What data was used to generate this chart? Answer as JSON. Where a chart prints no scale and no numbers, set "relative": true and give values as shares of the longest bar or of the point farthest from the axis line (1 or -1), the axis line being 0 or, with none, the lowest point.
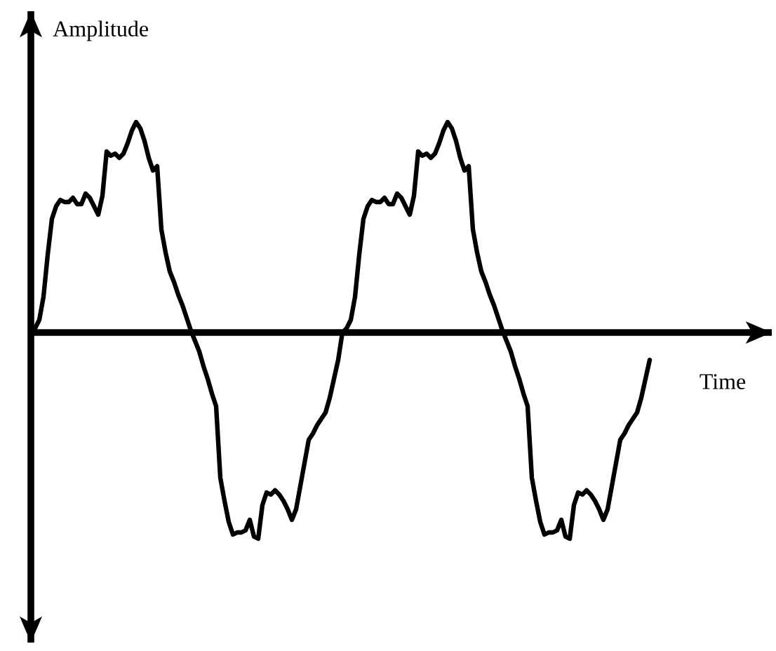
{
  "chart_data": {
    "type": "line",
    "xlabel": "Time",
    "ylabel": "Amplitude",
    "relative": true,
    "tick_labels": false,
    "line_style": "solid",
    "categories": [
      null,
      null,
      null,
      null,
      null,
      null,
      null,
      null,
      null,
      null,
      null,
      null,
      null,
      null,
      null,
      null,
      null,
      null,
      null,
      null,
      null,
      null,
      null,
      null,
      null,
      null,
      null,
      null,
      null,
      null,
      null,
      null,
      null,
      null,
      null,
      null,
      null,
      null,
      null,
      null,
      null,
      null,
      null,
      null,
      null,
      null,
      null,
      null,
      null,
      null,
      null,
      null,
      null,
      null,
      null,
      null,
      null,
      null,
      null,
      null,
      null,
      null,
      null,
      null,
      null,
      null,
      null,
      null,
      null,
      null,
      null,
      null,
      null,
      null,
      null,
      null,
      null,
      null,
      null,
      null,
      null,
      null,
      null,
      null,
      null,
      null,
      null,
      null,
      null,
      null,
      null,
      null,
      null,
      null,
      null,
      null,
      null,
      null,
      null,
      null,
      null,
      null,
      null,
      null,
      null,
      null,
      null,
      null,
      null,
      null,
      null,
      null,
      null,
      null,
      null,
      null,
      null,
      null,
      null,
      null,
      null,
      null,
      null,
      null,
      null,
      null,
      null,
      null,
      null,
      null,
      null,
      null,
      null,
      null,
      null,
      null,
      null,
      null,
      null,
      null,
      null,
      null,
      null,
      null,
      null,
      null,
      null,
      null
    ],
    "series": [
      {
        "color": "#000000",
        "values": [
          0,
          0.02,
          0.06,
          0.17,
          0.37,
          0.54,
          0.6,
          0.63,
          0.62,
          0.62,
          0.64,
          0.61,
          0.61,
          0.66,
          0.64,
          0.6,
          0.56,
          0.65,
          0.86,
          0.84,
          0.85,
          0.83,
          0.85,
          0.9,
          0.96,
          1,
          0.97,
          0.91,
          0.83,
          0.77,
          0.79,
          0.49,
          0.38,
          0.29,
          0.24,
          0.18,
          0.13,
          0.07,
          0.01,
          -0.04,
          -0.09,
          -0.16,
          -0.22,
          -0.29,
          -0.35,
          -0.69,
          -0.8,
          -0.9,
          -0.96,
          -0.95,
          -0.95,
          -0.94,
          -0.89,
          -0.97,
          -0.98,
          -0.82,
          -0.76,
          -0.77,
          -0.75,
          -0.77,
          -0.8,
          -0.84,
          -0.89,
          -0.84,
          -0.73,
          -0.62,
          -0.51,
          -0.48,
          -0.44,
          -0.41,
          -0.38,
          -0.31,
          -0.22,
          -0.13,
          0,
          0.02,
          0.06,
          0.17,
          0.37,
          0.54,
          0.6,
          0.63,
          0.62,
          0.62,
          0.64,
          0.61,
          0.61,
          0.66,
          0.64,
          0.6,
          0.56,
          0.65,
          0.86,
          0.84,
          0.85,
          0.83,
          0.85,
          0.9,
          0.96,
          1,
          0.97,
          0.91,
          0.83,
          0.77,
          0.79,
          0.49,
          0.38,
          0.29,
          0.24,
          0.18,
          0.13,
          0.07,
          0.01,
          -0.04,
          -0.09,
          -0.16,
          -0.22,
          -0.29,
          -0.35,
          -0.69,
          -0.8,
          -0.9,
          -0.96,
          -0.95,
          -0.95,
          -0.94,
          -0.89,
          -0.97,
          -0.98,
          -0.82,
          -0.76,
          -0.77,
          -0.75,
          -0.77,
          -0.8,
          -0.84,
          -0.89,
          -0.84,
          -0.73,
          -0.62,
          -0.51,
          -0.48,
          -0.44,
          -0.41,
          -0.38,
          -0.31,
          -0.22,
          -0.13
        ]
      }
    ]
  }
}
